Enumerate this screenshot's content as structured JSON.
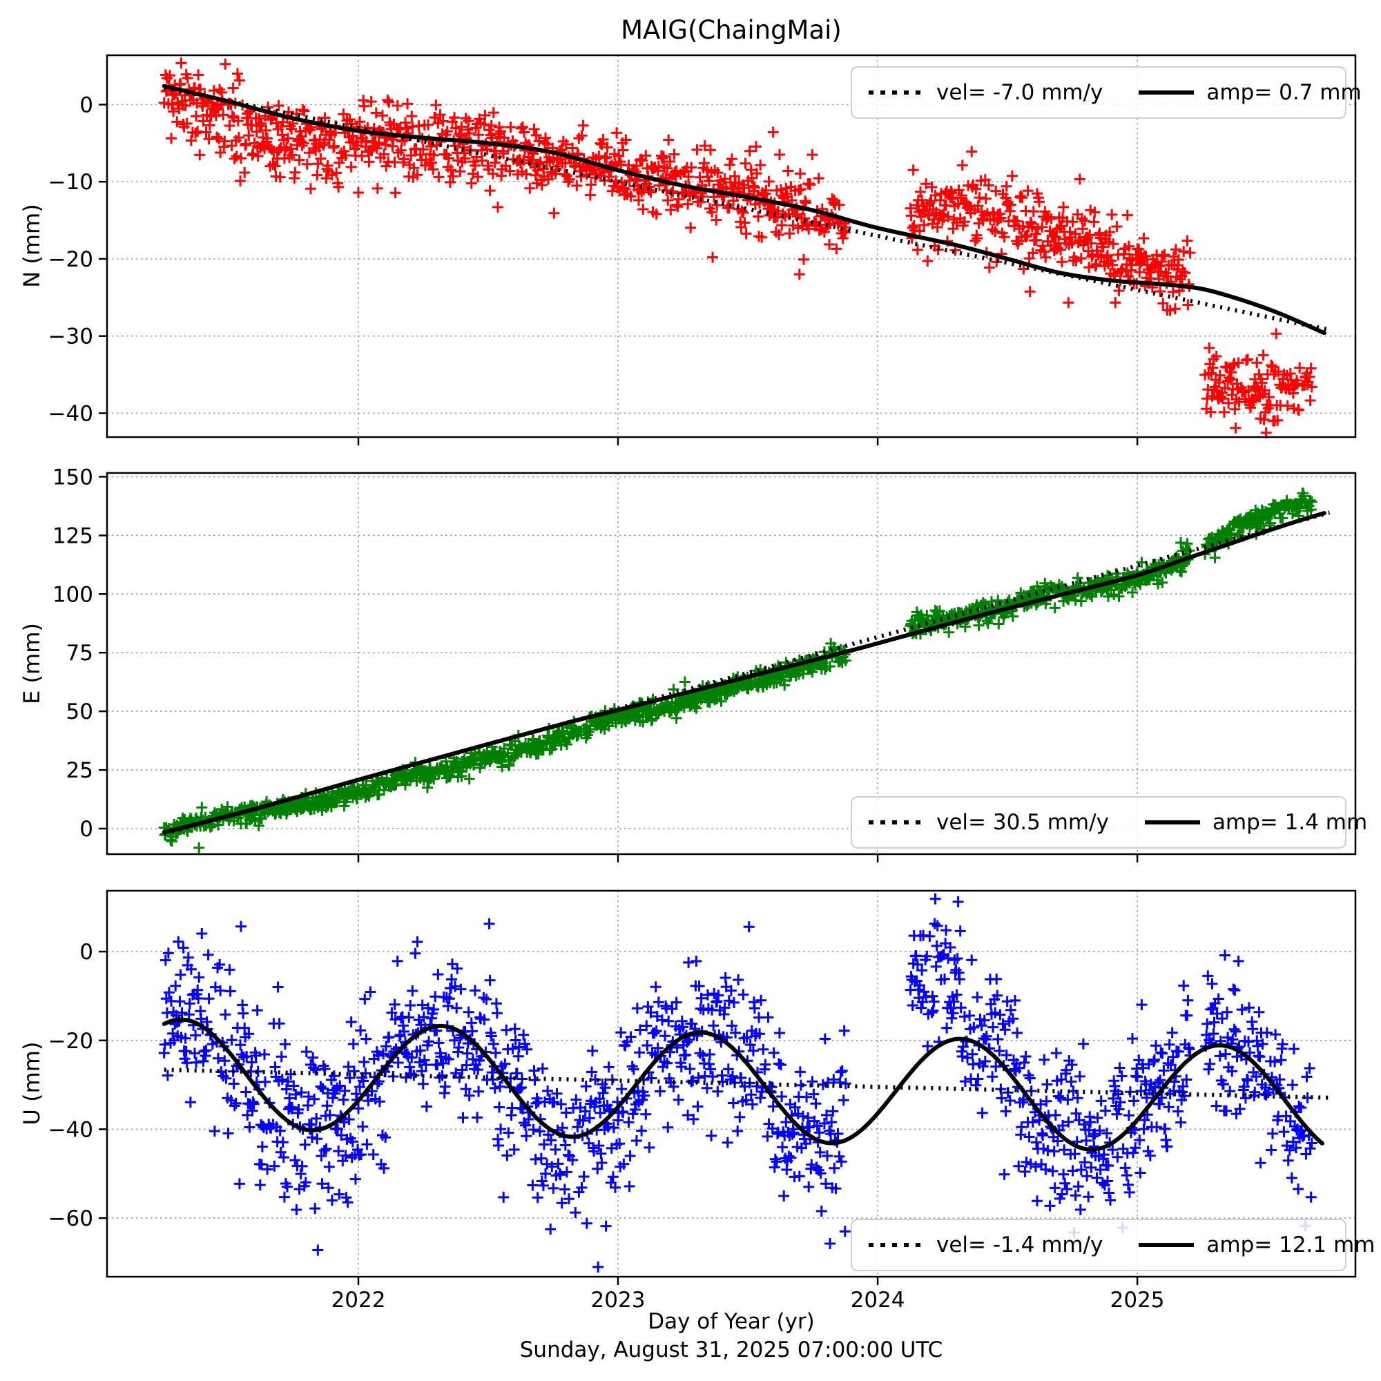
{
  "title": "MAIG(ChaingMai)",
  "footer_timestamp": "Sunday, August 31, 2025 07:00:00 UTC",
  "colors": {
    "n_series": "#ff0000",
    "e_series": "#008000",
    "u_series": "#0000ff",
    "fit_line": "#000000",
    "grid": "#999999",
    "legend_border": "#cfcfcf"
  },
  "x_axis": {
    "label": "Day of Year (yr)",
    "xlim": [
      2021.032,
      2025.84
    ],
    "ticks": [
      2022,
      2023,
      2024,
      2025
    ],
    "tick_labels": [
      "2022",
      "2023",
      "2024",
      "2025"
    ]
  },
  "chart_data": [
    {
      "type": "scatter",
      "name": "N",
      "ylabel": "N (mm)",
      "marker": "+",
      "color": "#ff0000",
      "ylim": [
        -43.1,
        6.4
      ],
      "yticks": [
        0,
        -10,
        -20,
        -30,
        -40
      ],
      "ytick_labels": [
        "0",
        "−10",
        "−20",
        "−30",
        "−40"
      ],
      "grid": true,
      "legend": {
        "position": "top-right",
        "vel": "vel= -7.0 mm/y",
        "amp": "amp= 0.7 mm",
        "vel_mm_per_yr": -7.0,
        "amp_mm": 0.7
      },
      "trend_dotted": {
        "p0": [
          2021.252,
          2.2
        ],
        "p1": [
          2025.74,
          -29.2
        ]
      },
      "fit_solid_anchors": [
        [
          2021.252,
          2.4
        ],
        [
          2021.5,
          0.4
        ],
        [
          2021.75,
          -1.8
        ],
        [
          2022.0,
          -3.4
        ],
        [
          2022.25,
          -4.3
        ],
        [
          2022.5,
          -5.0
        ],
        [
          2022.75,
          -6.2
        ],
        [
          2023.0,
          -8.5
        ],
        [
          2023.25,
          -10.5
        ],
        [
          2023.5,
          -12.0
        ],
        [
          2023.75,
          -13.7
        ],
        [
          2024.0,
          -16.0
        ],
        [
          2024.3,
          -18.2
        ],
        [
          2024.5,
          -20.0
        ],
        [
          2024.7,
          -21.8
        ],
        [
          2024.9,
          -22.8
        ],
        [
          2025.1,
          -23.3
        ],
        [
          2025.25,
          -23.9
        ],
        [
          2025.4,
          -25.3
        ],
        [
          2025.55,
          -27.1
        ],
        [
          2025.72,
          -29.6
        ]
      ],
      "scatter": {
        "t_start": 2021.252,
        "t_end": 2025.672,
        "step": 0.00274,
        "dropout": 0.12,
        "sd": 2.1,
        "sd_early": {
          "until": 2022.3,
          "sd": 2.6
        },
        "outliers": {
          "p": 0.03,
          "min": 3,
          "max": 7
        },
        "gaps": [
          [
            2023.877,
            2024.125
          ],
          [
            2025.205,
            2025.258
          ]
        ],
        "mean_anchors": [
          [
            2021.252,
            0.8
          ],
          [
            2021.33,
            0.2
          ],
          [
            2021.42,
            -1.2
          ],
          [
            2021.5,
            -2.2
          ],
          [
            2021.62,
            -3.8
          ],
          [
            2021.75,
            -4.6
          ],
          [
            2021.9,
            -4.8
          ],
          [
            2022.05,
            -4.4
          ],
          [
            2022.2,
            -4.6
          ],
          [
            2022.35,
            -5.0
          ],
          [
            2022.5,
            -5.6
          ],
          [
            2022.65,
            -6.8
          ],
          [
            2022.8,
            -7.6
          ],
          [
            2022.95,
            -8.2
          ],
          [
            2023.1,
            -9.0
          ],
          [
            2023.25,
            -9.8
          ],
          [
            2023.4,
            -11.0
          ],
          [
            2023.55,
            -12.3
          ],
          [
            2023.7,
            -13.2
          ],
          [
            2023.877,
            -15.2
          ],
          [
            2024.125,
            -13.6
          ],
          [
            2024.3,
            -13.9
          ],
          [
            2024.45,
            -14.3
          ],
          [
            2024.6,
            -15.6
          ],
          [
            2024.75,
            -17.2
          ],
          [
            2024.9,
            -18.8
          ],
          [
            2025.0,
            -20.8
          ],
          [
            2025.1,
            -22.2
          ],
          [
            2025.205,
            -23.3
          ],
          [
            2025.258,
            -35.2
          ],
          [
            2025.35,
            -36.6
          ],
          [
            2025.45,
            -36.2
          ],
          [
            2025.55,
            -36.8
          ],
          [
            2025.672,
            -35.8
          ]
        ]
      }
    },
    {
      "type": "scatter",
      "name": "E",
      "ylabel": "E (mm)",
      "marker": "+",
      "color": "#008000",
      "ylim": [
        -10.9,
        151.6
      ],
      "yticks": [
        150,
        125,
        100,
        75,
        50,
        25,
        0
      ],
      "ytick_labels": [
        "150",
        "125",
        "100",
        "75",
        "50",
        "25",
        "0"
      ],
      "grid": true,
      "legend": {
        "position": "bottom-right",
        "vel": "vel= 30.5 mm/y",
        "amp": "amp= 1.4 mm",
        "vel_mm_per_yr": 30.5,
        "amp_mm": 1.4
      },
      "trend_dotted": {
        "p0": [
          2021.252,
          -2.2
        ],
        "p1": [
          2025.74,
          134.7
        ]
      },
      "fit_solid_anchors": [
        [
          2021.252,
          -1.6
        ],
        [
          2021.6,
          8.3
        ],
        [
          2022.0,
          20.8
        ],
        [
          2022.4,
          33.0
        ],
        [
          2022.8,
          45.0
        ],
        [
          2023.0,
          50.5
        ],
        [
          2023.3,
          59.0
        ],
        [
          2023.6,
          67.5
        ],
        [
          2023.9,
          76.0
        ],
        [
          2024.1,
          82.0
        ],
        [
          2024.4,
          91.0
        ],
        [
          2024.7,
          99.5
        ],
        [
          2025.0,
          108.0
        ],
        [
          2025.2,
          115.5
        ],
        [
          2025.45,
          125.0
        ],
        [
          2025.6,
          130.5
        ],
        [
          2025.72,
          134.5
        ]
      ],
      "scatter": {
        "t_start": 2021.252,
        "t_end": 2025.672,
        "step": 0.00274,
        "dropout": 0.12,
        "sd": 2.1,
        "outliers": {
          "p": 0.02,
          "min": 3,
          "max": 6
        },
        "gaps": [
          [
            2023.877,
            2024.125
          ],
          [
            2025.205,
            2025.258
          ]
        ],
        "mean_anchors": [
          [
            2021.252,
            -1.0
          ],
          [
            2021.45,
            4.5
          ],
          [
            2021.7,
            9.0
          ],
          [
            2021.9,
            12.0
          ],
          [
            2022.05,
            17.0
          ],
          [
            2022.18,
            22.5
          ],
          [
            2022.32,
            24.5
          ],
          [
            2022.5,
            30.0
          ],
          [
            2022.7,
            35.5
          ],
          [
            2022.9,
            44.0
          ],
          [
            2023.05,
            49.5
          ],
          [
            2023.25,
            53.0
          ],
          [
            2023.45,
            60.0
          ],
          [
            2023.65,
            66.5
          ],
          [
            2023.877,
            74.0
          ],
          [
            2024.125,
            86.0
          ],
          [
            2024.3,
            90.0
          ],
          [
            2024.5,
            94.0
          ],
          [
            2024.65,
            100.0
          ],
          [
            2024.8,
            101.5
          ],
          [
            2024.95,
            105.5
          ],
          [
            2025.1,
            111.0
          ],
          [
            2025.205,
            116.0
          ],
          [
            2025.258,
            120.0
          ],
          [
            2025.35,
            126.5
          ],
          [
            2025.5,
            134.5
          ],
          [
            2025.6,
            138.5
          ],
          [
            2025.672,
            139.5
          ]
        ]
      }
    },
    {
      "type": "scatter",
      "name": "U",
      "ylabel": "U (mm)",
      "marker": "+",
      "color": "#0000ff",
      "ylim": [
        -73.2,
        13.7
      ],
      "yticks": [
        0,
        -20,
        -40,
        -60
      ],
      "ytick_labels": [
        "0",
        "−20",
        "−40",
        "−60"
      ],
      "grid": true,
      "legend": {
        "position": "bottom-right",
        "vel": "vel= -1.4 mm/y",
        "amp": "amp= 12.1 mm",
        "vel_mm_per_yr": -1.4,
        "amp_mm": 12.1
      },
      "trend_dotted": {
        "p0": [
          2021.252,
          -26.6
        ],
        "p1": [
          2025.74,
          -32.9
        ]
      },
      "fit_seasonal": {
        "base": -27.4,
        "slope": -1.45,
        "t_ref": 2021.32,
        "amp": 12.1,
        "peak_phase": 0.32
      },
      "scatter": {
        "t_start": 2021.252,
        "t_end": 2025.672,
        "step": 0.00274,
        "dropout": 0.12,
        "sd": 8.5,
        "seasonal": {
          "base": -27.4,
          "slope": -1.45,
          "t_ref": 2021.32,
          "amp": 12.5,
          "peak_phase": 0.32
        },
        "outliers": {
          "p": 0.06,
          "min": 6,
          "max": 18
        },
        "gaps": [
          [
            2023.877,
            2024.125
          ],
          [
            2025.205,
            2025.258
          ]
        ],
        "clusters": [
          {
            "t0": 2024.125,
            "t1": 2024.32,
            "mean": -6.0,
            "sd": 6.0
          }
        ]
      }
    }
  ]
}
